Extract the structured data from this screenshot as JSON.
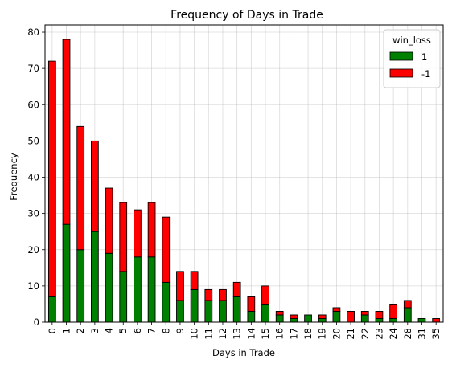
{
  "chart_data": {
    "type": "bar",
    "stacked": true,
    "title": "Frequency of Days in Trade",
    "xlabel": "Days in Trade",
    "ylabel": "Frequency",
    "ylim": [
      0,
      82
    ],
    "yticks": [
      0,
      10,
      20,
      30,
      40,
      50,
      60,
      70,
      80
    ],
    "grid": true,
    "legend": {
      "title": "win_loss",
      "placement": "top-right"
    },
    "categories": [
      "0",
      "1",
      "2",
      "3",
      "4",
      "5",
      "6",
      "7",
      "8",
      "9",
      "10",
      "11",
      "12",
      "13",
      "14",
      "15",
      "16",
      "17",
      "18",
      "19",
      "20",
      "21",
      "22",
      "23",
      "24",
      "28",
      "31",
      "35"
    ],
    "series": [
      {
        "name": "1",
        "color": "#008000",
        "values": [
          7,
          27,
          20,
          25,
          19,
          14,
          18,
          18,
          11,
          6,
          9,
          6,
          6,
          7,
          3,
          5,
          2,
          1,
          2,
          1,
          3,
          0,
          2,
          1,
          1,
          4,
          1,
          0
        ]
      },
      {
        "name": "-1",
        "color": "#ff0000",
        "values": [
          65,
          51,
          34,
          25,
          18,
          19,
          13,
          15,
          18,
          8,
          5,
          3,
          3,
          4,
          4,
          5,
          1,
          1,
          0,
          1,
          1,
          3,
          1,
          2,
          4,
          2,
          0,
          1
        ]
      }
    ]
  }
}
